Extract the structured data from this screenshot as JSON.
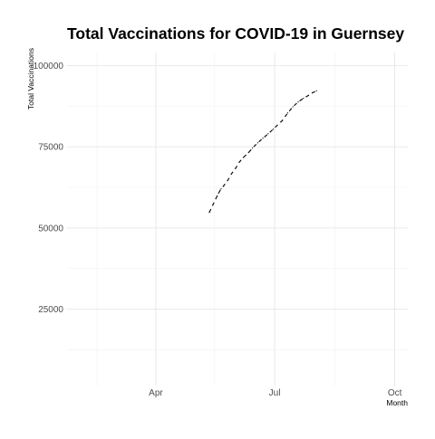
{
  "chart_data": {
    "type": "line",
    "title": "Total Vaccinations for COVID-19 in Guernsey",
    "xlabel": "Month",
    "ylabel": "Total Vaccinations",
    "x_ticks": [
      "Apr",
      "Jul",
      "Oct"
    ],
    "x_tick_dates": [
      "2021-04-01",
      "2021-07-01",
      "2021-10-01"
    ],
    "x_minor_dates": [
      "2021-02-15",
      "2021-05-16",
      "2021-08-16"
    ],
    "xlim": [
      "2021-01-23",
      "2021-10-11"
    ],
    "y_ticks": [
      25000,
      50000,
      75000,
      100000
    ],
    "y_minor": [
      12500,
      37500,
      62500,
      87500
    ],
    "ylim": [
      1500,
      104000
    ],
    "grid": true,
    "line_color": "#000000",
    "line_style": "dashed",
    "series": [
      {
        "x": [
          "2021-05-12",
          "2021-05-18",
          "2021-05-19",
          "2021-05-21",
          "2021-05-23",
          "2021-05-26",
          "2021-05-29",
          "2021-06-01",
          "2021-06-04",
          "2021-06-07",
          "2021-06-11",
          "2021-06-14",
          "2021-06-18",
          "2021-06-22",
          "2021-06-26",
          "2021-06-30",
          "2021-07-03",
          "2021-07-07",
          "2021-07-11",
          "2021-07-15",
          "2021-07-19",
          "2021-07-23",
          "2021-07-27",
          "2021-07-30",
          "2021-08-02"
        ],
        "values": [
          54800,
          59900,
          60700,
          62100,
          63000,
          64600,
          66700,
          68300,
          70300,
          71700,
          73200,
          74600,
          76200,
          77600,
          79000,
          80400,
          81600,
          83100,
          85400,
          87300,
          88800,
          89900,
          90800,
          91600,
          92200
        ]
      }
    ]
  }
}
